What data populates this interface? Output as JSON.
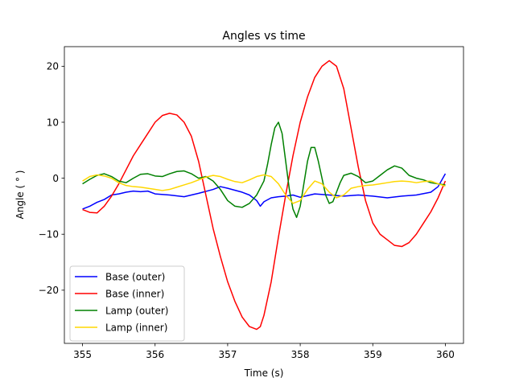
{
  "chart_data": {
    "type": "line",
    "title": "Angles vs time",
    "xlabel": "Time (s)",
    "ylabel": "Angle ( ° )",
    "xlim": [
      354.75,
      360.25
    ],
    "ylim": [
      -29.5,
      23.5
    ],
    "xticks": [
      355,
      356,
      357,
      358,
      359,
      360
    ],
    "yticks": [
      -20,
      -10,
      0,
      10,
      20
    ],
    "xtick_labels": [
      "355",
      "356",
      "357",
      "358",
      "359",
      "360"
    ],
    "ytick_labels": [
      "−20",
      "−10",
      "0",
      "10",
      "20"
    ],
    "grid": false,
    "legend_position": "lower-left",
    "series": [
      {
        "name": "Base (outer)",
        "color": "#0000ff",
        "x": [
          355.0,
          355.1,
          355.2,
          355.3,
          355.4,
          355.5,
          355.6,
          355.7,
          355.8,
          355.9,
          356.0,
          356.2,
          356.4,
          356.5,
          356.6,
          356.8,
          356.9,
          357.0,
          357.2,
          357.3,
          357.4,
          357.45,
          357.5,
          357.6,
          357.7,
          357.8,
          357.9,
          358.0,
          358.2,
          358.4,
          358.6,
          358.8,
          359.0,
          359.2,
          359.4,
          359.6,
          359.8,
          359.9,
          360.0
        ],
        "y": [
          -5.5,
          -5.0,
          -4.3,
          -3.8,
          -3.0,
          -2.8,
          -2.5,
          -2.3,
          -2.4,
          -2.3,
          -2.8,
          -3.0,
          -3.3,
          -3.0,
          -2.7,
          -2.0,
          -1.5,
          -1.8,
          -2.5,
          -3.0,
          -4.0,
          -5.0,
          -4.2,
          -3.5,
          -3.3,
          -3.2,
          -3.0,
          -3.4,
          -2.8,
          -3.0,
          -3.2,
          -3.0,
          -3.2,
          -3.5,
          -3.2,
          -3.0,
          -2.5,
          -1.5,
          0.8
        ]
      },
      {
        "name": "Base (inner)",
        "color": "#ff0000",
        "x": [
          355.0,
          355.1,
          355.2,
          355.3,
          355.4,
          355.5,
          355.6,
          355.7,
          355.8,
          355.9,
          356.0,
          356.1,
          356.2,
          356.3,
          356.4,
          356.5,
          356.6,
          356.7,
          356.8,
          356.9,
          357.0,
          357.1,
          357.2,
          357.3,
          357.4,
          357.45,
          357.5,
          357.6,
          357.7,
          357.8,
          357.9,
          358.0,
          358.1,
          358.2,
          358.3,
          358.4,
          358.5,
          358.6,
          358.7,
          358.8,
          358.9,
          359.0,
          359.1,
          359.2,
          359.3,
          359.4,
          359.5,
          359.6,
          359.7,
          359.8,
          359.9,
          360.0
        ],
        "y": [
          -5.6,
          -6.1,
          -6.2,
          -5.0,
          -3.2,
          -1.0,
          1.5,
          4.0,
          6.0,
          8.0,
          10.0,
          11.2,
          11.6,
          11.3,
          10.0,
          7.5,
          3.0,
          -3.0,
          -9.0,
          -14.0,
          -18.5,
          -22.0,
          -24.8,
          -26.5,
          -27.0,
          -26.5,
          -24.5,
          -18.5,
          -10.5,
          -3.0,
          4.0,
          10.0,
          14.5,
          18.0,
          20.0,
          21.0,
          20.0,
          16.0,
          9.0,
          2.0,
          -4.0,
          -8.0,
          -10.0,
          -11.0,
          -12.0,
          -12.2,
          -11.5,
          -10.0,
          -8.0,
          -6.0,
          -3.5,
          -0.5
        ]
      },
      {
        "name": "Lamp (outer)",
        "color": "#008000",
        "x": [
          355.0,
          355.1,
          355.2,
          355.3,
          355.4,
          355.5,
          355.6,
          355.7,
          355.8,
          355.9,
          356.0,
          356.1,
          356.2,
          356.3,
          356.4,
          356.5,
          356.6,
          356.7,
          356.8,
          356.9,
          357.0,
          357.1,
          357.2,
          357.3,
          357.4,
          357.5,
          357.55,
          357.6,
          357.65,
          357.7,
          357.75,
          357.8,
          357.85,
          357.9,
          357.95,
          358.0,
          358.05,
          358.1,
          358.15,
          358.2,
          358.25,
          358.3,
          358.35,
          358.4,
          358.45,
          358.5,
          358.55,
          358.6,
          358.7,
          358.8,
          358.9,
          359.0,
          359.1,
          359.2,
          359.3,
          359.4,
          359.5,
          359.6,
          359.7,
          359.8,
          359.9,
          360.0
        ],
        "y": [
          -1.0,
          -0.2,
          0.5,
          0.8,
          0.3,
          -0.5,
          -0.8,
          0.0,
          0.7,
          0.8,
          0.4,
          0.3,
          0.8,
          1.2,
          1.3,
          0.8,
          0.0,
          0.3,
          -0.5,
          -2.0,
          -4.0,
          -5.0,
          -5.2,
          -4.5,
          -3.0,
          -0.5,
          2.5,
          6.0,
          9.0,
          10.0,
          8.0,
          3.0,
          -2.0,
          -5.5,
          -7.0,
          -5.0,
          -1.0,
          3.0,
          5.5,
          5.5,
          3.0,
          0.0,
          -3.0,
          -4.5,
          -4.2,
          -2.5,
          -0.8,
          0.5,
          0.9,
          0.3,
          -0.8,
          -0.5,
          0.5,
          1.5,
          2.2,
          1.8,
          0.5,
          0.0,
          -0.3,
          -0.8,
          -1.0,
          -1.2
        ]
      },
      {
        "name": "Lamp (inner)",
        "color": "#ffd700",
        "x": [
          355.0,
          355.1,
          355.2,
          355.3,
          355.4,
          355.5,
          355.6,
          355.7,
          355.8,
          355.9,
          356.0,
          356.1,
          356.2,
          356.3,
          356.4,
          356.5,
          356.6,
          356.7,
          356.8,
          356.9,
          357.0,
          357.1,
          357.2,
          357.3,
          357.4,
          357.5,
          357.6,
          357.7,
          357.8,
          357.9,
          358.0,
          358.1,
          358.2,
          358.3,
          358.4,
          358.5,
          358.6,
          358.7,
          358.8,
          358.9,
          359.0,
          359.1,
          359.2,
          359.3,
          359.4,
          359.5,
          359.6,
          359.7,
          359.8,
          359.9,
          360.0
        ],
        "y": [
          -0.5,
          0.3,
          0.6,
          0.4,
          0.0,
          -0.8,
          -1.3,
          -1.5,
          -1.6,
          -1.8,
          -2.0,
          -2.2,
          -2.0,
          -1.6,
          -1.2,
          -0.8,
          -0.3,
          0.2,
          0.5,
          0.3,
          -0.2,
          -0.6,
          -0.8,
          -0.3,
          0.3,
          0.6,
          0.3,
          -1.0,
          -3.0,
          -4.5,
          -4.0,
          -2.0,
          -0.5,
          -1.0,
          -2.5,
          -3.5,
          -3.0,
          -1.8,
          -1.5,
          -1.3,
          -1.2,
          -1.0,
          -0.8,
          -0.6,
          -0.5,
          -0.6,
          -0.8,
          -0.6,
          -0.5,
          -1.0,
          -1.4
        ]
      }
    ]
  }
}
